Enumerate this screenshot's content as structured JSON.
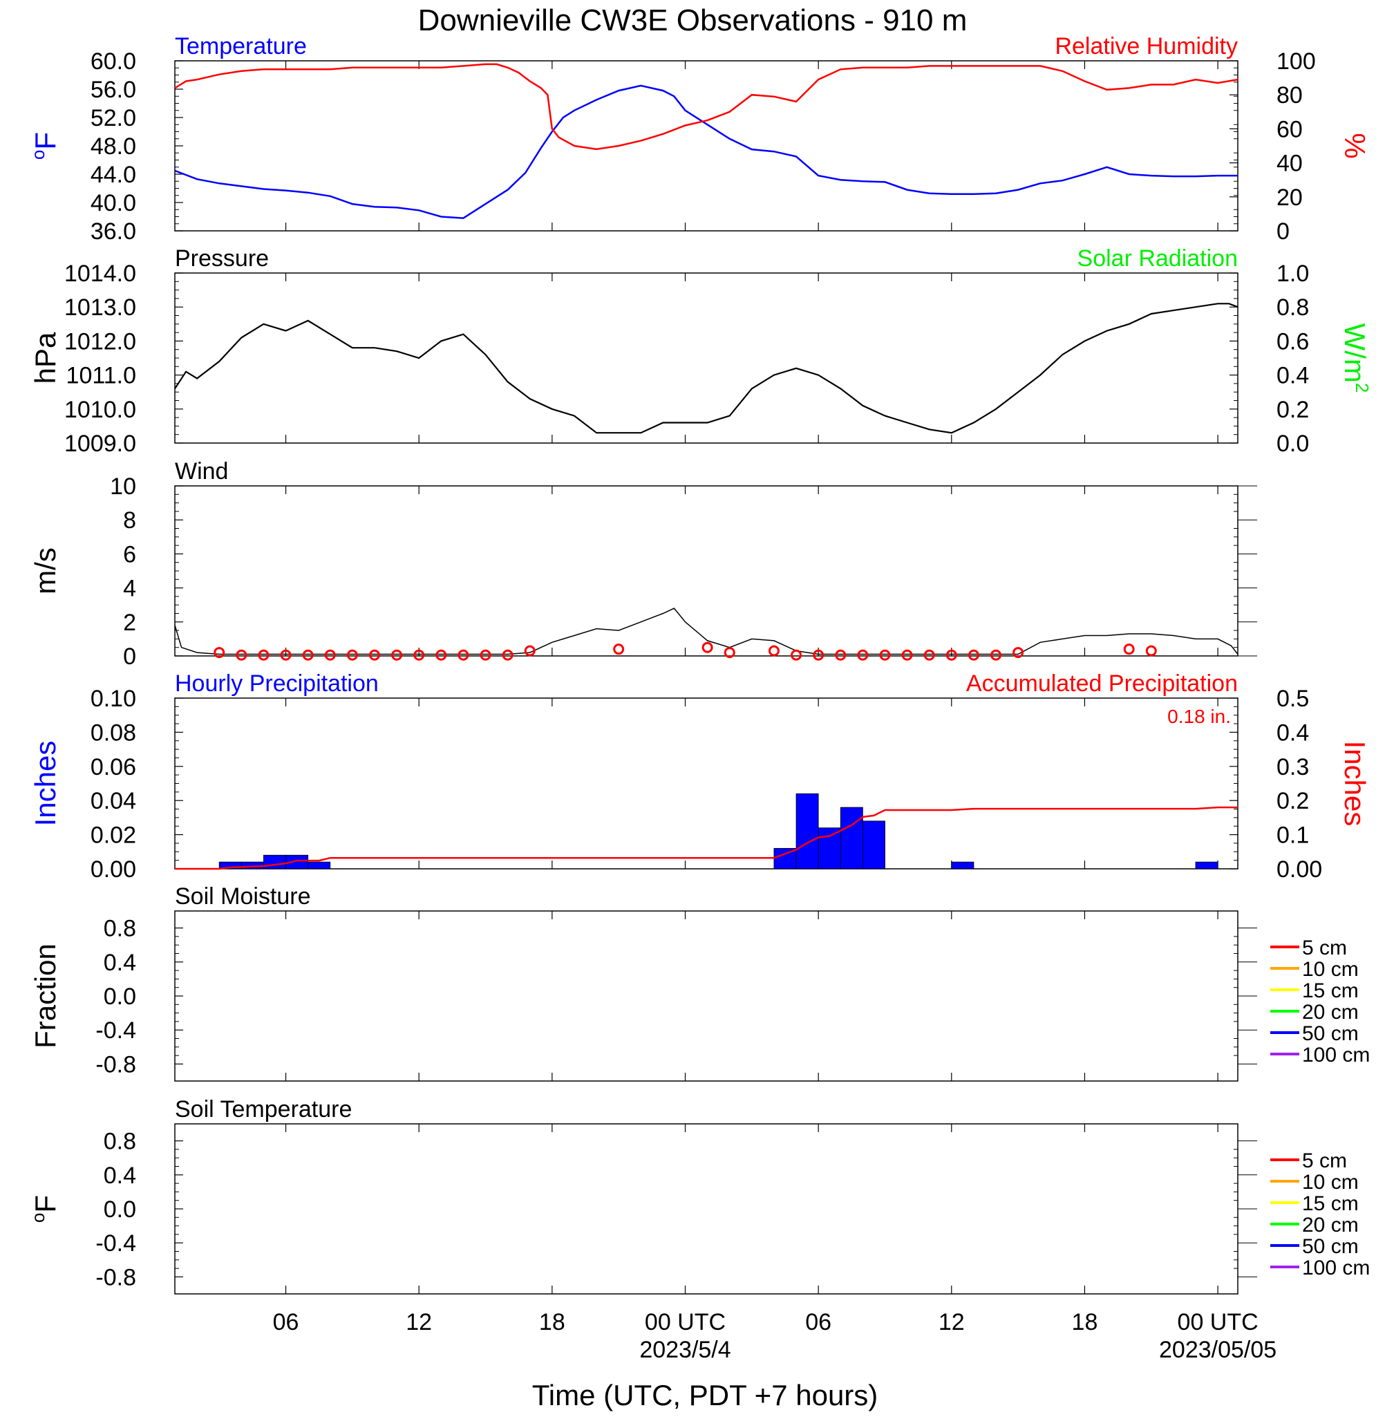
{
  "title": "Downieville CW3E Observations - 910 m",
  "xaxis": {
    "label": "Time (UTC, PDT +7 hours)",
    "ticks": [
      "06",
      "12",
      "18",
      "00 UTC",
      "06",
      "12",
      "18",
      "00 UTC"
    ],
    "tick_hours": [
      6,
      12,
      18,
      24,
      30,
      36,
      42,
      48
    ],
    "date_labels": [
      "2023/5/4",
      "2023/05/05"
    ],
    "date_hours": [
      24,
      48
    ],
    "range_hours": [
      1,
      48.9
    ]
  },
  "colors": {
    "blue": "#0000ff",
    "red": "#ff0000",
    "green": "#00ee00",
    "black": "#000000"
  },
  "soil_legend": [
    {
      "label": "5 cm",
      "color": "#ff0000"
    },
    {
      "label": "10 cm",
      "color": "#ffa500"
    },
    {
      "label": "15 cm",
      "color": "#ffff00"
    },
    {
      "label": "20 cm",
      "color": "#00ff00"
    },
    {
      "label": "50 cm",
      "color": "#0000ff"
    },
    {
      "label": "100 cm",
      "color": "#a020f0"
    }
  ],
  "chart_data": [
    {
      "type": "line",
      "left_title": "Temperature",
      "right_title": "Relative Humidity",
      "ylabel": "oF",
      "ylabel_right": "%",
      "yticks": [
        "60.0",
        "56.0",
        "52.0",
        "48.0",
        "44.0",
        "40.0",
        "36.0"
      ],
      "ylim": [
        36,
        60
      ],
      "yticks_right": [
        "100",
        "80",
        "60",
        "40",
        "20",
        "0"
      ],
      "ylim_right": [
        0,
        100
      ],
      "series": [
        {
          "name": "Temperature",
          "x": [
            1,
            2,
            3,
            4,
            5,
            6,
            7,
            8,
            9,
            10,
            11,
            12,
            13,
            14,
            15,
            16,
            16.8,
            17.5,
            18,
            18.5,
            19,
            20,
            21,
            22,
            23,
            23.5,
            24,
            25,
            26,
            27,
            28,
            29,
            30,
            31,
            32,
            33,
            34,
            35,
            36,
            37,
            38,
            39,
            40,
            41,
            42,
            43,
            44,
            45,
            46,
            47,
            48,
            48.9
          ],
          "values": [
            44.5,
            43.3,
            42.7,
            42.3,
            41.9,
            41.7,
            41.4,
            40.9,
            39.8,
            39.4,
            39.3,
            38.9,
            38.0,
            37.8,
            39.8,
            41.8,
            44.2,
            47.7,
            50.0,
            52.0,
            53.0,
            54.5,
            55.8,
            56.5,
            55.8,
            55.0,
            53.0,
            51.0,
            49.0,
            47.5,
            47.2,
            46.5,
            43.8,
            43.2,
            43.0,
            42.9,
            41.8,
            41.3,
            41.2,
            41.2,
            41.3,
            41.8,
            42.7,
            43.1,
            44.0,
            45.0,
            44.0,
            43.8,
            43.7,
            43.7,
            43.8,
            43.8
          ]
        },
        {
          "name": "Relative Humidity",
          "x": [
            1,
            1.5,
            2,
            3,
            4,
            5,
            6,
            7,
            8,
            9,
            10,
            11,
            12,
            13,
            14,
            15,
            15.5,
            16,
            16.5,
            17,
            17.5,
            17.8,
            18,
            18.3,
            19,
            20,
            21,
            22,
            23,
            24,
            25,
            26,
            27,
            28,
            29,
            30,
            31,
            32,
            33,
            34,
            35,
            36,
            37,
            38,
            39,
            40,
            41,
            42,
            43,
            44,
            45,
            46,
            47,
            48,
            48.9
          ],
          "values": [
            84,
            88,
            89,
            92,
            94,
            95,
            95,
            95,
            95,
            96,
            96,
            96,
            96,
            96,
            97,
            98,
            98,
            96,
            93,
            88,
            84,
            80,
            60,
            55,
            50,
            48,
            50,
            53,
            57,
            62,
            65,
            70,
            80,
            79,
            76,
            89,
            95,
            96,
            96,
            96,
            97,
            97,
            97,
            97,
            97,
            97,
            94,
            88,
            83,
            84,
            86,
            86,
            89,
            87,
            89
          ]
        }
      ]
    },
    {
      "type": "line",
      "left_title": "Pressure",
      "right_title": "Solar Radiation",
      "ylabel": "hPa",
      "ylabel_right": "W/m2",
      "yticks": [
        "1014.0",
        "1013.0",
        "1012.0",
        "1011.0",
        "1010.0",
        "1009.0"
      ],
      "ylim": [
        1009,
        1014
      ],
      "yticks_right": [
        "1.0",
        "0.8",
        "0.6",
        "0.4",
        "0.2",
        "0.0"
      ],
      "ylim_right": [
        0,
        1
      ],
      "series": [
        {
          "name": "Pressure",
          "x": [
            1,
            1.5,
            2,
            3,
            4,
            5,
            6,
            7,
            8,
            9,
            10,
            11,
            12,
            13,
            14,
            15,
            16,
            17,
            18,
            19,
            20,
            21,
            22,
            23,
            24,
            25,
            26,
            27,
            28,
            29,
            30,
            31,
            32,
            33,
            34,
            35,
            36,
            37,
            38,
            39,
            40,
            41,
            42,
            43,
            44,
            45,
            46,
            47,
            48,
            48.5,
            48.9
          ],
          "values": [
            1010.6,
            1011.1,
            1010.9,
            1011.4,
            1012.1,
            1012.5,
            1012.3,
            1012.6,
            1012.2,
            1011.8,
            1011.8,
            1011.7,
            1011.5,
            1012.0,
            1012.2,
            1011.6,
            1010.8,
            1010.3,
            1010.0,
            1009.8,
            1009.3,
            1009.3,
            1009.3,
            1009.6,
            1009.6,
            1009.6,
            1009.8,
            1010.6,
            1011.0,
            1011.2,
            1011.0,
            1010.6,
            1010.1,
            1009.8,
            1009.6,
            1009.4,
            1009.3,
            1009.6,
            1010.0,
            1010.5,
            1011.0,
            1011.6,
            1012.0,
            1012.3,
            1012.5,
            1012.8,
            1012.9,
            1013.0,
            1013.1,
            1013.1,
            1013.0
          ]
        }
      ]
    },
    {
      "type": "line",
      "left_title": "Wind",
      "ylabel": "m/s",
      "yticks": [
        "10",
        "8",
        "6",
        "4",
        "2",
        "0"
      ],
      "ylim": [
        0,
        10
      ],
      "series": [
        {
          "name": "Wind",
          "x": [
            1,
            1.3,
            2,
            3,
            4,
            5,
            6,
            7,
            8,
            9,
            10,
            11,
            12,
            13,
            14,
            15,
            16,
            17,
            18,
            18.5,
            19,
            20,
            21,
            22,
            23,
            23.5,
            24,
            25,
            26,
            27,
            28,
            29,
            30,
            31,
            32,
            33,
            34,
            35,
            36,
            37,
            38,
            39,
            40,
            41,
            42,
            43,
            44,
            45,
            46,
            47,
            48,
            48.6,
            48.9
          ],
          "values": [
            1.8,
            0.5,
            0.2,
            0.1,
            0.1,
            0.1,
            0.1,
            0.1,
            0.1,
            0.1,
            0.1,
            0.1,
            0.1,
            0.1,
            0.1,
            0.1,
            0.1,
            0.2,
            0.8,
            1.0,
            1.2,
            1.6,
            1.5,
            2.0,
            2.5,
            2.8,
            2.0,
            0.9,
            0.5,
            1.0,
            0.9,
            0.3,
            0.1,
            0.1,
            0.1,
            0.1,
            0.1,
            0.1,
            0.1,
            0.1,
            0.1,
            0.1,
            0.8,
            1.0,
            1.2,
            1.2,
            1.3,
            1.3,
            1.2,
            1.0,
            1.0,
            0.6,
            0.1
          ]
        }
      ],
      "markers": {
        "x": [
          3,
          4,
          5,
          6,
          7,
          8,
          9,
          10,
          11,
          12,
          13,
          14,
          15,
          16,
          17,
          21,
          25,
          26,
          28,
          29,
          30,
          31,
          32,
          33,
          34,
          35,
          36,
          37,
          38,
          39,
          44,
          45
        ],
        "values": [
          0.2,
          0.05,
          0.05,
          0.05,
          0.05,
          0.05,
          0.05,
          0.05,
          0.05,
          0.05,
          0.05,
          0.05,
          0.05,
          0.05,
          0.3,
          0.4,
          0.5,
          0.2,
          0.3,
          0.05,
          0.05,
          0.05,
          0.05,
          0.05,
          0.05,
          0.05,
          0.05,
          0.05,
          0.05,
          0.2,
          0.4,
          0.3
        ]
      }
    },
    {
      "type": "bar",
      "left_title": "Hourly Precipitation",
      "right_title": "Accumulated Precipitation",
      "annotation": "0.18 in.",
      "ylabel": "Inches",
      "ylabel_right": "Inches",
      "yticks": [
        "0.10",
        "0.08",
        "0.06",
        "0.04",
        "0.02",
        "0.00"
      ],
      "ylim": [
        0,
        0.1
      ],
      "yticks_right": [
        "0.5",
        "0.4",
        "0.3",
        "0.2",
        "0.1",
        "0.00"
      ],
      "ylim_right": [
        0,
        0.5
      ],
      "bars": {
        "x_start": [
          3,
          4,
          5,
          6,
          7,
          28,
          29,
          30,
          31,
          32,
          36,
          47
        ],
        "values": [
          0.004,
          0.004,
          0.008,
          0.008,
          0.004,
          0.012,
          0.044,
          0.024,
          0.036,
          0.028,
          0.004,
          0.004
        ]
      },
      "accumulated": {
        "x": [
          1,
          3,
          3.5,
          5,
          6,
          6.5,
          7.5,
          8,
          28,
          28.5,
          29,
          29.5,
          30,
          30.5,
          31,
          31.5,
          32,
          32.5,
          33,
          36,
          37,
          47,
          48,
          48.9
        ],
        "values": [
          0.0,
          0.0,
          0.004,
          0.008,
          0.016,
          0.024,
          0.024,
          0.032,
          0.032,
          0.044,
          0.056,
          0.076,
          0.092,
          0.096,
          0.112,
          0.128,
          0.152,
          0.156,
          0.172,
          0.172,
          0.176,
          0.176,
          0.18,
          0.18
        ]
      }
    },
    {
      "type": "line",
      "left_title": "Soil Moisture",
      "ylabel": "Fraction",
      "yticks": [
        "0.8",
        "0.4",
        "0.0",
        "-0.4",
        "-0.8"
      ],
      "ytick_values": [
        0.8,
        0.4,
        0.0,
        -0.4,
        -0.8
      ],
      "ylim": [
        -1,
        1
      ],
      "series": []
    },
    {
      "type": "line",
      "left_title": "Soil Temperature",
      "ylabel": "oF",
      "yticks": [
        "0.8",
        "0.4",
        "0.0",
        "-0.4",
        "-0.8"
      ],
      "ytick_values": [
        0.8,
        0.4,
        0.0,
        -0.4,
        -0.8
      ],
      "ylim": [
        -1,
        1
      ],
      "series": []
    }
  ]
}
